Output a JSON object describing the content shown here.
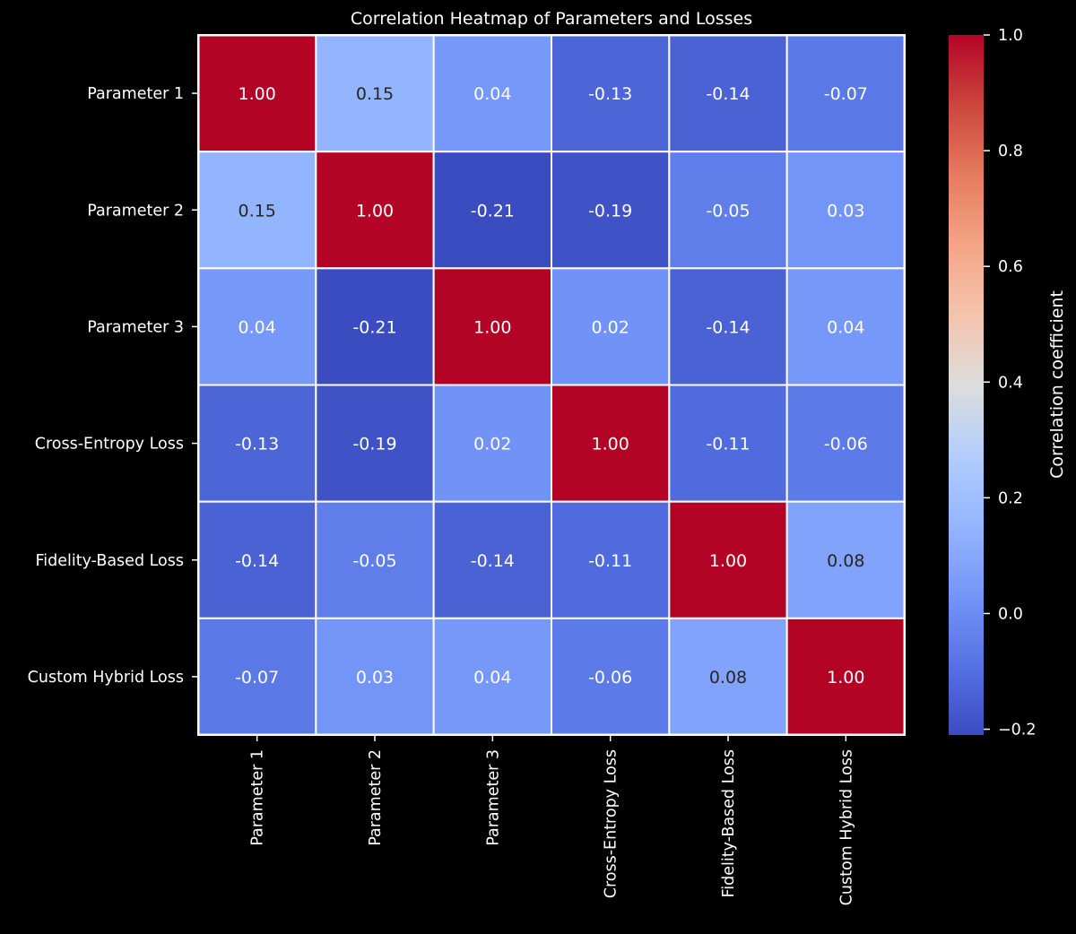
{
  "chart_data": {
    "type": "heatmap",
    "title": "Correlation Heatmap of Parameters and Losses",
    "row_labels": [
      "Parameter 1",
      "Parameter 2",
      "Parameter 3",
      "Cross-Entropy Loss",
      "Fidelity-Based Loss",
      "Custom Hybrid Loss"
    ],
    "col_labels": [
      "Parameter 1",
      "Parameter 2",
      "Parameter 3",
      "Cross-Entropy Loss",
      "Fidelity-Based Loss",
      "Custom Hybrid Loss"
    ],
    "values": [
      [
        1.0,
        0.15,
        0.04,
        -0.13,
        -0.14,
        -0.07
      ],
      [
        0.15,
        1.0,
        -0.21,
        -0.19,
        -0.05,
        0.03
      ],
      [
        0.04,
        -0.21,
        1.0,
        0.02,
        -0.14,
        0.04
      ],
      [
        -0.13,
        -0.19,
        0.02,
        1.0,
        -0.11,
        -0.06
      ],
      [
        -0.14,
        -0.05,
        -0.14,
        -0.11,
        1.0,
        0.08
      ],
      [
        -0.07,
        0.03,
        0.04,
        -0.06,
        0.08,
        1.0
      ]
    ],
    "cell_labels": [
      [
        "1.00",
        "0.15",
        "0.04",
        "-0.13",
        "-0.14",
        "-0.07"
      ],
      [
        "0.15",
        "1.00",
        "-0.21",
        "-0.19",
        "-0.05",
        "0.03"
      ],
      [
        "0.04",
        "-0.21",
        "1.00",
        "0.02",
        "-0.14",
        "0.04"
      ],
      [
        "-0.13",
        "-0.19",
        "0.02",
        "1.00",
        "-0.11",
        "-0.06"
      ],
      [
        "-0.14",
        "-0.05",
        "-0.14",
        "-0.11",
        "1.00",
        "0.08"
      ],
      [
        "-0.07",
        "0.03",
        "0.04",
        "-0.06",
        "0.08",
        "1.00"
      ]
    ],
    "colormap": "coolwarm",
    "colorbar": {
      "label": "Correlation coefficient",
      "range": [
        -0.21,
        1.0
      ],
      "ticks": [
        -0.2,
        0.0,
        0.2,
        0.4,
        0.6,
        0.8,
        1.0
      ],
      "tick_labels": [
        "−0.2",
        "0.0",
        "0.2",
        "0.4",
        "0.6",
        "0.8",
        "1.0"
      ]
    },
    "grid": true,
    "colors": {
      "background": "#000000",
      "text": "#ffffff",
      "cell_border": "#ffffff"
    }
  }
}
